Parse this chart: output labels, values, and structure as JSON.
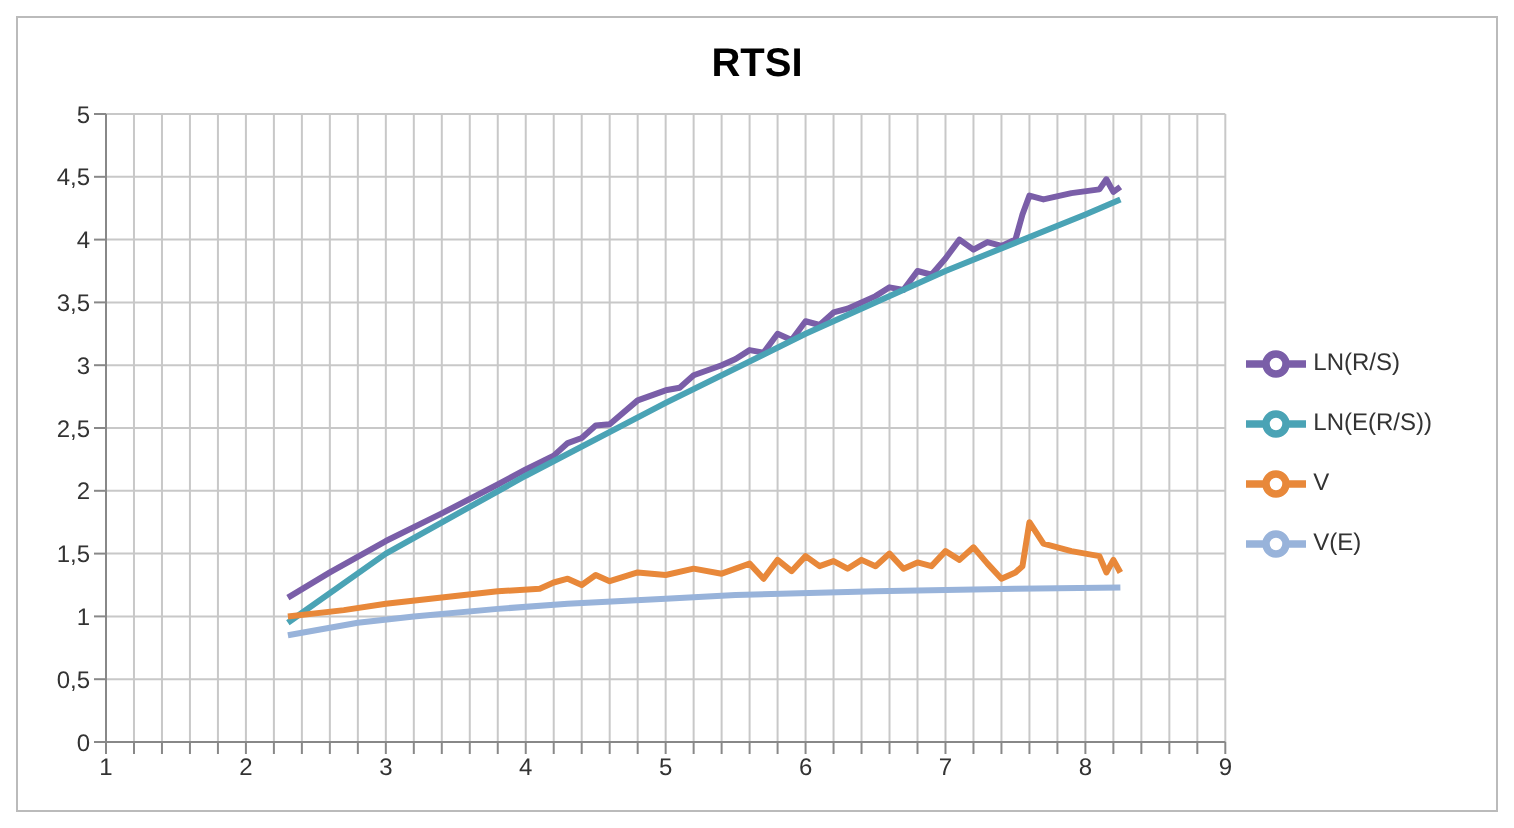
{
  "chart_data": {
    "type": "line",
    "title": "RTSI",
    "xlim": [
      1,
      9
    ],
    "xticks": [
      1,
      {
        "value": 1.2,
        "label": null
      },
      {
        "value": 1.4,
        "label": null
      },
      {
        "value": 1.6,
        "label": null
      },
      {
        "value": 1.8,
        "label": null
      },
      2,
      {
        "value": 2.2,
        "label": null
      },
      {
        "value": 2.4,
        "label": null
      },
      {
        "value": 2.6,
        "label": null
      },
      {
        "value": 2.8,
        "label": null
      },
      3,
      {
        "value": 3.2,
        "label": null
      },
      {
        "value": 3.4,
        "label": null
      },
      {
        "value": 3.6,
        "label": null
      },
      {
        "value": 3.8,
        "label": null
      },
      4,
      {
        "value": 4.2,
        "label": null
      },
      {
        "value": 4.4,
        "label": null
      },
      {
        "value": 4.6,
        "label": null
      },
      {
        "value": 4.8,
        "label": null
      },
      5,
      {
        "value": 5.2,
        "label": null
      },
      {
        "value": 5.4,
        "label": null
      },
      {
        "value": 5.6,
        "label": null
      },
      {
        "value": 5.8,
        "label": null
      },
      6,
      {
        "value": 6.2,
        "label": null
      },
      {
        "value": 6.4,
        "label": null
      },
      {
        "value": 6.6,
        "label": null
      },
      {
        "value": 6.8,
        "label": null
      },
      7,
      {
        "value": 7.2,
        "label": null
      },
      {
        "value": 7.4,
        "label": null
      },
      {
        "value": 7.6,
        "label": null
      },
      {
        "value": 7.8,
        "label": null
      },
      8,
      {
        "value": 8.2,
        "label": null
      },
      {
        "value": 8.4,
        "label": null
      },
      {
        "value": 8.6,
        "label": null
      },
      {
        "value": 8.8,
        "label": null
      },
      9
    ],
    "ylim": [
      0,
      5
    ],
    "yticks": [
      0,
      {
        "value": 0.5,
        "label": "0,5"
      },
      1,
      {
        "value": 1.5,
        "label": "1,5"
      },
      2,
      {
        "value": 2.5,
        "label": "2,5"
      },
      3,
      {
        "value": 3.5,
        "label": "3,5"
      },
      4,
      {
        "value": 4.5,
        "label": "4,5"
      },
      5
    ],
    "grid": true,
    "legend": "right",
    "marker": "none",
    "line_style": "solid",
    "series": [
      {
        "name": "LN(R/S)",
        "color": "#7a5ea8",
        "x": [
          2.3,
          2.6,
          3.0,
          3.4,
          3.8,
          4.0,
          4.2,
          4.3,
          4.4,
          4.5,
          4.6,
          4.8,
          5.0,
          5.1,
          5.2,
          5.4,
          5.5,
          5.6,
          5.7,
          5.8,
          5.9,
          6.0,
          6.1,
          6.2,
          6.3,
          6.4,
          6.5,
          6.6,
          6.7,
          6.8,
          6.9,
          7.0,
          7.1,
          7.2,
          7.3,
          7.4,
          7.5,
          7.55,
          7.6,
          7.7,
          7.9,
          8.1,
          8.15,
          8.2,
          8.25
        ],
        "values": [
          1.15,
          1.35,
          1.6,
          1.82,
          2.05,
          2.17,
          2.28,
          2.38,
          2.42,
          2.52,
          2.53,
          2.72,
          2.8,
          2.82,
          2.92,
          3.0,
          3.05,
          3.12,
          3.1,
          3.25,
          3.2,
          3.35,
          3.32,
          3.42,
          3.45,
          3.5,
          3.55,
          3.62,
          3.6,
          3.75,
          3.72,
          3.85,
          4.0,
          3.92,
          3.98,
          3.95,
          4.0,
          4.2,
          4.35,
          4.32,
          4.37,
          4.4,
          4.48,
          4.38,
          4.42
        ]
      },
      {
        "name": "LN(E(R/S))",
        "color": "#4aa3b5",
        "x": [
          2.3,
          3.0,
          4.0,
          5.0,
          6.0,
          7.0,
          8.0,
          8.25
        ],
        "values": [
          0.95,
          1.5,
          2.12,
          2.7,
          3.25,
          3.75,
          4.2,
          4.32
        ]
      },
      {
        "name": "V",
        "color": "#e8883a",
        "x": [
          2.3,
          2.7,
          3.0,
          3.4,
          3.8,
          4.1,
          4.2,
          4.3,
          4.4,
          4.5,
          4.6,
          4.8,
          5.0,
          5.2,
          5.4,
          5.6,
          5.7,
          5.8,
          5.9,
          6.0,
          6.1,
          6.2,
          6.3,
          6.4,
          6.5,
          6.6,
          6.7,
          6.8,
          6.9,
          7.0,
          7.1,
          7.2,
          7.3,
          7.4,
          7.5,
          7.55,
          7.6,
          7.7,
          7.9,
          8.1,
          8.15,
          8.2,
          8.25
        ],
        "values": [
          1.0,
          1.05,
          1.1,
          1.15,
          1.2,
          1.22,
          1.27,
          1.3,
          1.25,
          1.33,
          1.28,
          1.35,
          1.33,
          1.38,
          1.34,
          1.42,
          1.3,
          1.45,
          1.36,
          1.48,
          1.4,
          1.44,
          1.38,
          1.45,
          1.4,
          1.5,
          1.38,
          1.43,
          1.4,
          1.52,
          1.45,
          1.55,
          1.42,
          1.3,
          1.35,
          1.4,
          1.75,
          1.58,
          1.52,
          1.48,
          1.35,
          1.45,
          1.35
        ]
      },
      {
        "name": "V(E)",
        "color": "#98b3da",
        "x": [
          2.3,
          2.8,
          3.2,
          3.8,
          4.3,
          5.0,
          5.5,
          6.5,
          7.5,
          8.25
        ],
        "values": [
          0.85,
          0.95,
          1.0,
          1.06,
          1.1,
          1.14,
          1.17,
          1.2,
          1.22,
          1.23
        ]
      }
    ]
  }
}
